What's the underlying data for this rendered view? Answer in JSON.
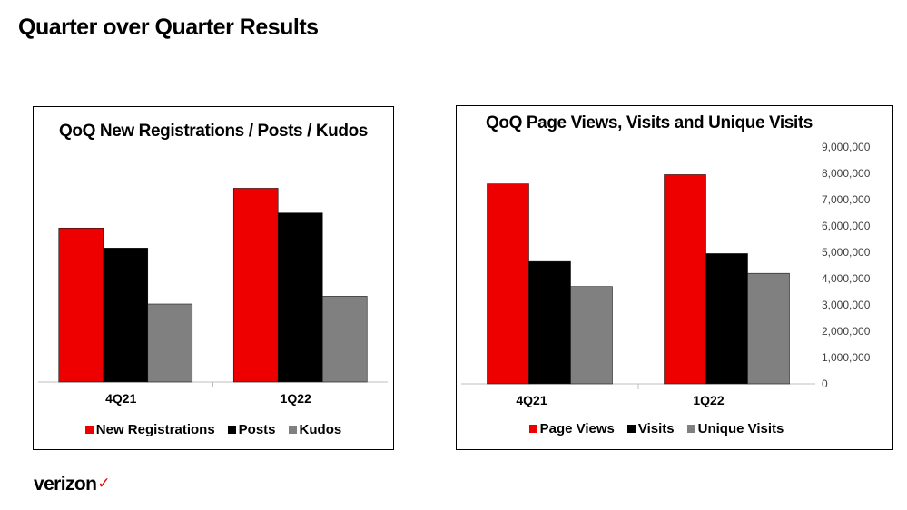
{
  "page": {
    "title": "Quarter over Quarter Results",
    "logo": {
      "text": "verizon",
      "accent_mark": "✓",
      "accent_color": "#ee0000"
    }
  },
  "chart_data": [
    {
      "type": "bar",
      "title": "QoQ New Registrations / Posts / Kudos",
      "categories": [
        "4Q21",
        "1Q22"
      ],
      "series": [
        {
          "name": "New Registrations",
          "color": "#ee0000",
          "values": [
            5.92,
            7.45
          ]
        },
        {
          "name": "Posts",
          "color": "#000000",
          "values": [
            5.15,
            6.5
          ]
        },
        {
          "name": "Kudos",
          "color": "#808080",
          "values": [
            3.0,
            3.3
          ]
        }
      ],
      "ylim": [
        0,
        9
      ],
      "y_axis_visible": false,
      "grid": false,
      "legend_position": "bottom"
    },
    {
      "type": "bar",
      "title": "QoQ Page Views, Visits and Unique Visits",
      "categories": [
        "4Q21",
        "1Q22"
      ],
      "series": [
        {
          "name": "Page Views",
          "color": "#ee0000",
          "values": [
            7600000,
            7950000
          ]
        },
        {
          "name": "Visits",
          "color": "#000000",
          "values": [
            4650000,
            4950000
          ]
        },
        {
          "name": "Unique Visits",
          "color": "#808080",
          "values": [
            3700000,
            4200000
          ]
        }
      ],
      "ylim": [
        0,
        9000000
      ],
      "yticks": [
        "0",
        "1,000,000",
        "2,000,000",
        "3,000,000",
        "4,000,000",
        "5,000,000",
        "6,000,000",
        "7,000,000",
        "8,000,000",
        "9,000,000"
      ],
      "y_axis_position": "right",
      "grid": false,
      "legend_position": "bottom"
    }
  ]
}
